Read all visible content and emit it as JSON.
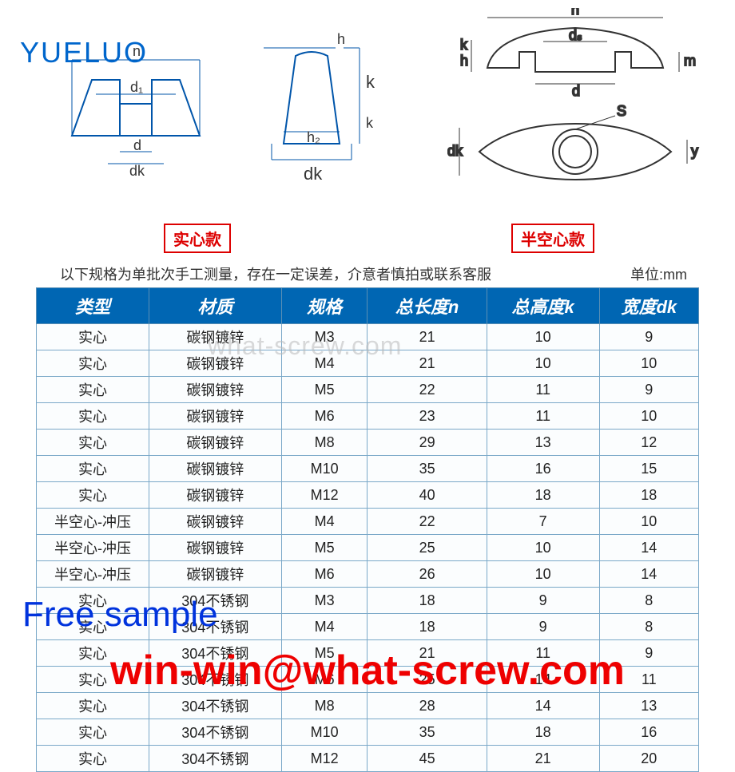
{
  "logo": "YUELUO",
  "tags": {
    "solid": "实心款",
    "hollow": "半空心款"
  },
  "note_left": "以下规格为单批次手工测量，存在一定误差，介意者慎拍或联系客服",
  "note_right": "单位:mm",
  "watermark": "what-screw.com",
  "free_sample": "Free sample",
  "email": "win-win@what-screw.com",
  "diagram_labels": {
    "n": "n",
    "d1": "d₁",
    "d": "d",
    "dk": "dk",
    "h": "h",
    "k": "k",
    "h2": "h₂",
    "ds": "dₛ",
    "m": "m",
    "s": "S",
    "y": "y"
  },
  "table": {
    "headers": [
      "类型",
      "材质",
      "规格",
      "总长度n",
      "总高度k",
      "宽度dk"
    ],
    "rows": [
      [
        "实心",
        "碳钢镀锌",
        "M3",
        "21",
        "10",
        "9"
      ],
      [
        "实心",
        "碳钢镀锌",
        "M4",
        "21",
        "10",
        "10"
      ],
      [
        "实心",
        "碳钢镀锌",
        "M5",
        "22",
        "11",
        "9"
      ],
      [
        "实心",
        "碳钢镀锌",
        "M6",
        "23",
        "11",
        "10"
      ],
      [
        "实心",
        "碳钢镀锌",
        "M8",
        "29",
        "13",
        "12"
      ],
      [
        "实心",
        "碳钢镀锌",
        "M10",
        "35",
        "16",
        "15"
      ],
      [
        "实心",
        "碳钢镀锌",
        "M12",
        "40",
        "18",
        "18"
      ],
      [
        "半空心-冲压",
        "碳钢镀锌",
        "M4",
        "22",
        "7",
        "10"
      ],
      [
        "半空心-冲压",
        "碳钢镀锌",
        "M5",
        "25",
        "10",
        "14"
      ],
      [
        "半空心-冲压",
        "碳钢镀锌",
        "M6",
        "26",
        "10",
        "14"
      ],
      [
        "实心",
        "304不锈钢",
        "M3",
        "18",
        "9",
        "8"
      ],
      [
        "实心",
        "304不锈钢",
        "M4",
        "18",
        "9",
        "8"
      ],
      [
        "实心",
        "304不锈钢",
        "M5",
        "21",
        "11",
        "9"
      ],
      [
        "实心",
        "304不锈钢",
        "M6",
        "25",
        "14",
        "11"
      ],
      [
        "实心",
        "304不锈钢",
        "M8",
        "28",
        "14",
        "13"
      ],
      [
        "实心",
        "304不锈钢",
        "M10",
        "35",
        "18",
        "16"
      ],
      [
        "实心",
        "304不锈钢",
        "M12",
        "45",
        "21",
        "20"
      ]
    ]
  },
  "styling": {
    "header_bg": "#0066b3",
    "header_fg": "#ffffff",
    "border_color": "#7aa8c8",
    "logo_color": "#0066cc",
    "tag_border": "#d00",
    "email_color": "#ee0000",
    "sample_color": "#0033dd",
    "font_header": 22,
    "font_cell": 18
  }
}
